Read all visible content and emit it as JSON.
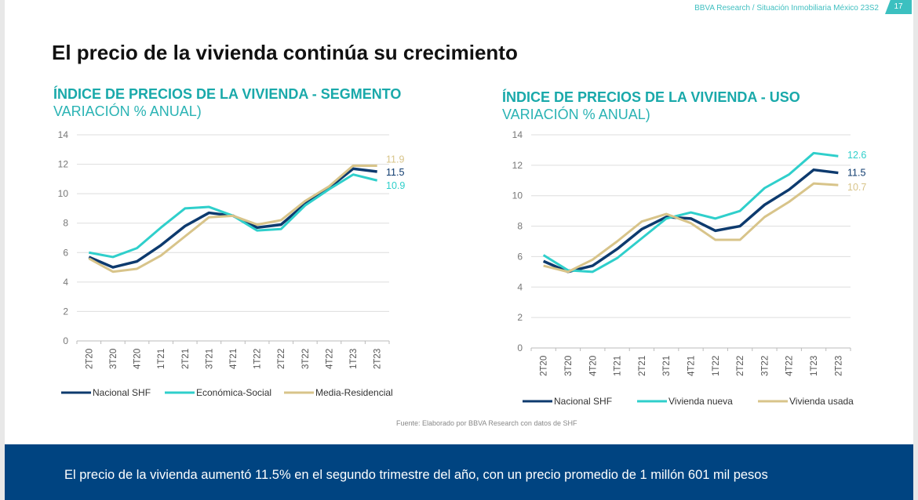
{
  "header": {
    "report": "BBVA Research / Situación Inmobiliaria México 23S2",
    "page": "17"
  },
  "title": "El precio de la vivienda continúa su crecimiento",
  "source": "Fuente: Elaborado por BBVA Research con datos de SHF",
  "footer": "El precio de la vivienda aumentó 11.5% en el segundo trimestre del año, con un precio promedio de 1 millón 601 mil pesos",
  "colors": {
    "navy": "#0d3a6e",
    "teal": "#2fcfcb",
    "gold": "#d8c48a"
  },
  "chart_data": [
    {
      "type": "line",
      "title": "ÍNDICE DE PRECIOS DE LA VIVIENDA - SEGMENTO",
      "subtitle": "VARIACIÓN % ANUAL)",
      "ylim": [
        0,
        14
      ],
      "yticks": [
        0,
        2,
        4,
        6,
        8,
        10,
        12,
        14
      ],
      "grid": true,
      "legend": "bottom",
      "categories": [
        "2T20",
        "3T20",
        "4T20",
        "1T21",
        "2T21",
        "3T21",
        "4T21",
        "1T22",
        "2T22",
        "3T22",
        "4T22",
        "1T23",
        "2T23"
      ],
      "series": [
        {
          "name": "Nacional SHF",
          "color": "#0d3a6e",
          "values": [
            5.7,
            5.0,
            5.4,
            6.5,
            7.8,
            8.7,
            8.5,
            7.7,
            7.9,
            9.3,
            10.4,
            11.7,
            11.5
          ],
          "end_label": "11.5"
        },
        {
          "name": "Económica-Social",
          "color": "#2fcfcb",
          "values": [
            6.0,
            5.7,
            6.3,
            7.7,
            9.0,
            9.1,
            8.5,
            7.5,
            7.6,
            9.2,
            10.3,
            11.3,
            10.9
          ],
          "end_label": "10.9"
        },
        {
          "name": "Media-Residencial",
          "color": "#d8c48a",
          "values": [
            5.6,
            4.7,
            4.9,
            5.8,
            7.1,
            8.4,
            8.5,
            7.9,
            8.2,
            9.5,
            10.5,
            11.9,
            11.9
          ],
          "end_label": "11.9"
        }
      ]
    },
    {
      "type": "line",
      "title": "ÍNDICE DE PRECIOS DE LA VIVIENDA - USO",
      "subtitle": "VARIACIÓN % ANUAL)",
      "ylim": [
        0,
        14
      ],
      "yticks": [
        0,
        2,
        4,
        6,
        8,
        10,
        12,
        14
      ],
      "grid": true,
      "legend": "bottom",
      "categories": [
        "2T20",
        "3T20",
        "4T20",
        "1T21",
        "2T21",
        "3T21",
        "4T21",
        "1T22",
        "2T22",
        "3T22",
        "4T22",
        "1T23",
        "2T23"
      ],
      "series": [
        {
          "name": "Nacional SHF",
          "color": "#0d3a6e",
          "values": [
            5.7,
            5.0,
            5.4,
            6.5,
            7.8,
            8.6,
            8.5,
            7.7,
            8.0,
            9.4,
            10.4,
            11.7,
            11.5
          ],
          "end_label": "11.5"
        },
        {
          "name": "Vivienda nueva",
          "color": "#2fcfcb",
          "values": [
            6.1,
            5.1,
            5.0,
            5.9,
            7.2,
            8.5,
            8.9,
            8.5,
            9.0,
            10.5,
            11.4,
            12.8,
            12.6
          ],
          "end_label": "12.6"
        },
        {
          "name": "Vivienda usada",
          "color": "#d8c48a",
          "values": [
            5.4,
            5.0,
            5.8,
            7.0,
            8.3,
            8.8,
            8.2,
            7.1,
            7.1,
            8.6,
            9.6,
            10.8,
            10.7
          ],
          "end_label": "10.7"
        }
      ]
    }
  ]
}
